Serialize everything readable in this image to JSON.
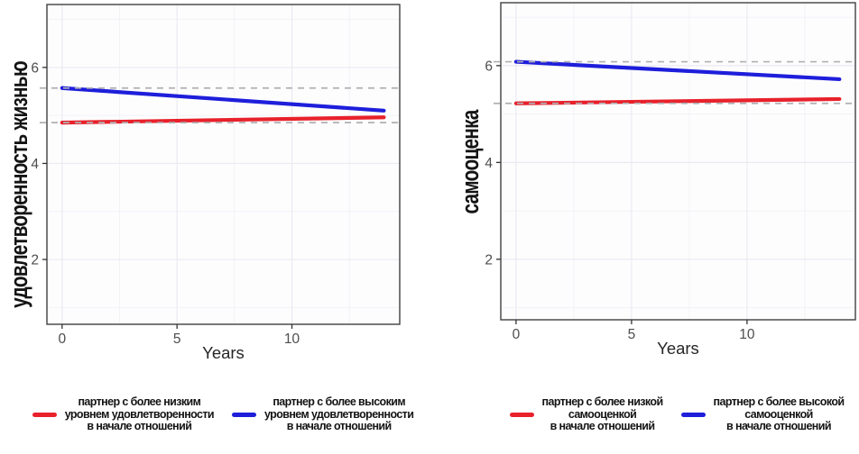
{
  "colors": {
    "red_line": "#e8212b",
    "blue_line": "#1e1edb",
    "reference_dashed": "#b0afb2",
    "grid_major": "#ebeaf1",
    "grid_minor": "#f3f2f7",
    "panel_bg": "#fdfdfe",
    "panel_border": "#404040",
    "tick_mark": "#333333",
    "tick_label": "#4d4d4d",
    "axis_label": "#262626"
  },
  "chart_data": [
    {
      "type": "line",
      "title": "",
      "xlabel": "Years",
      "ylabel": "удовлетворенность жизнью",
      "x_ticks": [
        0,
        5,
        10
      ],
      "y_ticks": [
        2,
        4,
        6
      ],
      "xlim": [
        -0.66,
        14.69
      ],
      "ylim": [
        0.65,
        7.31
      ],
      "grid": "major+minor",
      "legend_position": "bottom",
      "series": [
        {
          "name": "партнер с более низким уровнем удовлетворенности в начале отношений",
          "color": "#e8212b",
          "x": [
            0,
            14
          ],
          "y": [
            4.85,
            4.96
          ]
        },
        {
          "name": "партнер с более высоким уровнем удовлетворенности в начале отношений",
          "color": "#1e1edb",
          "x": [
            0,
            14
          ],
          "y": [
            5.57,
            5.1
          ]
        }
      ],
      "reference_lines": [
        {
          "y": 5.57,
          "style": "dashed"
        },
        {
          "y": 4.85,
          "style": "dashed"
        }
      ],
      "legend": [
        {
          "color": "#e8212b",
          "lines": [
            "партнер с более низким",
            "уровнем удовлетворенности",
            "в начале отношений"
          ]
        },
        {
          "color": "#1e1edb",
          "lines": [
            "партнер с более высоким",
            "уровнем удовлетворенности",
            "в начале отношений"
          ]
        }
      ]
    },
    {
      "type": "line",
      "title": "",
      "xlabel": "Years",
      "ylabel": "самооценка",
      "x_ticks": [
        0,
        5,
        10
      ],
      "y_ticks": [
        2,
        4,
        6
      ],
      "xlim": [
        -0.66,
        14.69
      ],
      "ylim": [
        0.75,
        7.3
      ],
      "grid": "major+minor",
      "legend_position": "bottom",
      "series": [
        {
          "name": "партнер с более низкой самооценкой в начале отношений",
          "color": "#e8212b",
          "x": [
            0,
            14
          ],
          "y": [
            5.22,
            5.31
          ]
        },
        {
          "name": "партнер с более высокой самооценкой в начале отношений",
          "color": "#1e1edb",
          "x": [
            0,
            14
          ],
          "y": [
            6.08,
            5.72
          ]
        }
      ],
      "reference_lines": [
        {
          "y": 6.08,
          "style": "dashed"
        },
        {
          "y": 5.22,
          "style": "dashed"
        }
      ],
      "legend": [
        {
          "color": "#e8212b",
          "lines": [
            "партнер с более низкой",
            "самооценкой",
            "в начале отношений"
          ]
        },
        {
          "color": "#1e1edb",
          "lines": [
            "партнер с более высокой",
            "самооценкой",
            "в начале отношений"
          ]
        }
      ]
    }
  ]
}
